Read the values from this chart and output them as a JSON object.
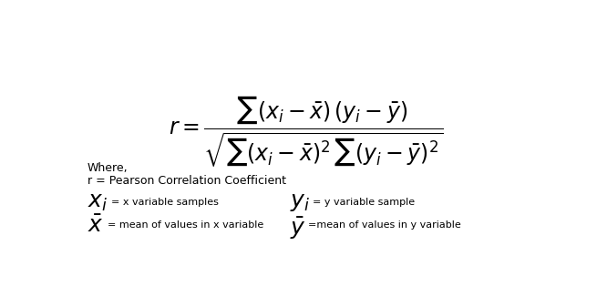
{
  "bg_color": "#ffffff",
  "where_text": "Where,",
  "r_def": "r = Pearson Correlation Coefficient",
  "xi_text": "= x variable samples",
  "yi_text": "= y variable sample",
  "xbar_text": "= mean of values in x variable",
  "ybar_text": "=mean of values in y variable",
  "formula_fontsize": 17,
  "text_fontsize": 9,
  "label_fontsize": 8,
  "symbol_fontsize": 18
}
